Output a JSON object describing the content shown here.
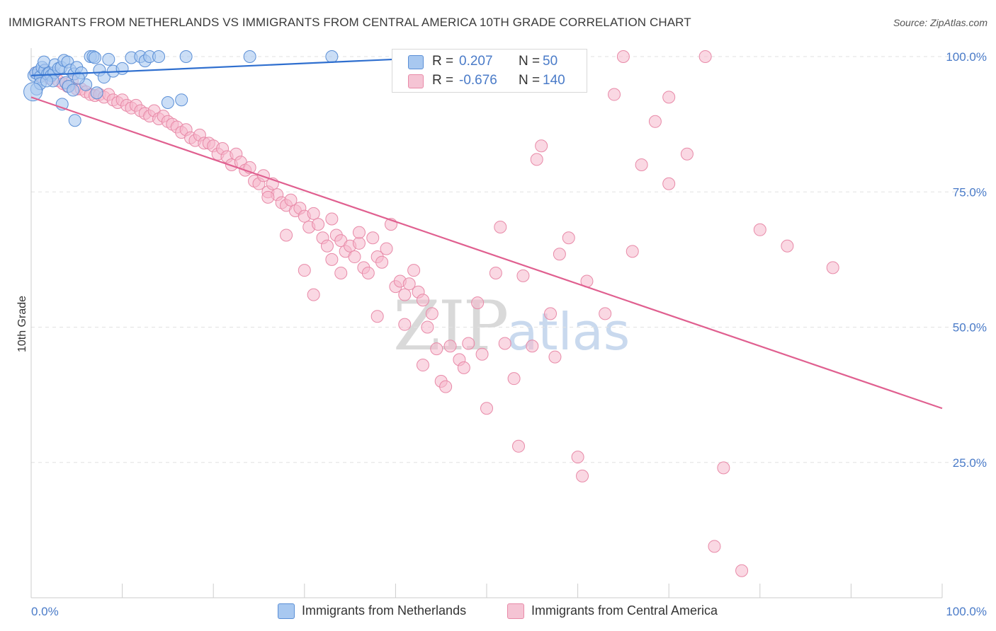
{
  "title": "IMMIGRANTS FROM NETHERLANDS VS IMMIGRANTS FROM CENTRAL AMERICA 10TH GRADE CORRELATION CHART",
  "source": "Source: ZipAtlas.com",
  "watermark": {
    "zip": "ZIP",
    "atlas": "atlas"
  },
  "legend": {
    "r_label": "R =",
    "n_label": "N =",
    "series1": {
      "r": "0.207",
      "n": "50"
    },
    "series2": {
      "r": "-0.676",
      "n": "140"
    }
  },
  "bottom_legend": {
    "series1": "Immigrants from Netherlands",
    "series2": "Immigrants from Central America"
  },
  "colors": {
    "series1_fill": "#a8c8f0",
    "series1_stroke": "#5b8fd6",
    "series1_line": "#2f6fcf",
    "series2_fill": "#f5b8cc",
    "series2_stroke": "#e88aa8",
    "series2_line": "#e06090",
    "tick": "#4a7bc8",
    "grid": "#e2e2e2"
  },
  "chart_data": {
    "type": "scatter",
    "title": "IMMIGRANTS FROM NETHERLANDS VS IMMIGRANTS FROM CENTRAL AMERICA 10TH GRADE CORRELATION CHART",
    "xlabel": "",
    "ylabel": "10th Grade",
    "xlim": [
      0,
      100
    ],
    "ylim": [
      0,
      100
    ],
    "x_ticks": [
      "0.0%",
      "100.0%"
    ],
    "y_ticks": [
      {
        "value": 25,
        "label": "25.0%"
      },
      {
        "value": 50,
        "label": "50.0%"
      },
      {
        "value": 75,
        "label": "75.0%"
      },
      {
        "value": 100,
        "label": "100.0%"
      }
    ],
    "grid": true,
    "series": [
      {
        "name": "Immigrants from Netherlands",
        "R": 0.207,
        "N": 50,
        "trend": {
          "x": [
            0,
            40
          ],
          "y": [
            96.5,
            99.5
          ]
        },
        "points": [
          [
            0.3,
            96.5
          ],
          [
            0.5,
            97
          ],
          [
            0.8,
            97.2
          ],
          [
            1,
            96.3
          ],
          [
            1.2,
            98
          ],
          [
            1.5,
            97.5
          ],
          [
            1.8,
            96.8
          ],
          [
            2,
            97
          ],
          [
            2.2,
            96.5
          ],
          [
            2.5,
            97
          ],
          [
            1.4,
            99
          ],
          [
            2.6,
            98.5
          ],
          [
            3,
            97.8
          ],
          [
            3.3,
            98
          ],
          [
            3.6,
            99.3
          ],
          [
            4,
            99
          ],
          [
            4.3,
            97.5
          ],
          [
            4.7,
            96.8
          ],
          [
            5,
            98
          ],
          [
            5.5,
            97
          ],
          [
            6.5,
            100
          ],
          [
            6.8,
            100
          ],
          [
            7,
            99.8
          ],
          [
            7.5,
            97.5
          ],
          [
            8,
            96.2
          ],
          [
            8.5,
            99.5
          ],
          [
            9,
            97.3
          ],
          [
            10,
            97.8
          ],
          [
            11,
            99.8
          ],
          [
            12,
            100
          ],
          [
            12.5,
            99.2
          ],
          [
            13,
            100
          ],
          [
            14,
            100
          ],
          [
            17,
            100
          ],
          [
            24,
            100
          ],
          [
            33,
            100
          ],
          [
            2.4,
            95.5
          ],
          [
            3.8,
            95.2
          ],
          [
            4.1,
            94.5
          ],
          [
            6,
            94.8
          ],
          [
            3.4,
            91.2
          ],
          [
            4.6,
            93.8
          ],
          [
            7.2,
            93.3
          ],
          [
            15,
            91.5
          ],
          [
            16.5,
            92
          ],
          [
            4.8,
            88.2
          ],
          [
            0.6,
            94
          ],
          [
            1,
            95
          ],
          [
            1.7,
            95.5
          ],
          [
            5.2,
            96
          ]
        ]
      },
      {
        "name": "Immigrants from Central America",
        "R": -0.676,
        "N": 140,
        "trend": {
          "x": [
            0,
            100
          ],
          "y": [
            92.5,
            35
          ]
        },
        "points": [
          [
            0.5,
            97
          ],
          [
            1,
            96.5
          ],
          [
            1.5,
            97.5
          ],
          [
            2,
            96
          ],
          [
            2.5,
            97
          ],
          [
            3,
            95.5
          ],
          [
            3.5,
            95
          ],
          [
            4,
            94.5
          ],
          [
            4.5,
            95.5
          ],
          [
            5,
            94
          ],
          [
            5.5,
            94
          ],
          [
            6,
            93.5
          ],
          [
            6.5,
            93
          ],
          [
            7,
            92.8
          ],
          [
            7.5,
            93
          ],
          [
            8,
            92.5
          ],
          [
            8.5,
            93
          ],
          [
            9,
            92
          ],
          [
            9.5,
            91.5
          ],
          [
            10,
            92
          ],
          [
            10.5,
            91
          ],
          [
            11,
            90.5
          ],
          [
            11.5,
            91
          ],
          [
            12,
            90
          ],
          [
            12.5,
            89.5
          ],
          [
            13,
            89
          ],
          [
            13.5,
            90
          ],
          [
            14,
            88.5
          ],
          [
            14.5,
            89
          ],
          [
            15,
            88
          ],
          [
            15.5,
            87.5
          ],
          [
            16,
            87
          ],
          [
            16.5,
            86
          ],
          [
            17,
            86.5
          ],
          [
            17.5,
            85
          ],
          [
            18,
            84.5
          ],
          [
            18.5,
            85.5
          ],
          [
            19,
            84
          ],
          [
            19.5,
            84
          ],
          [
            20,
            83.5
          ],
          [
            20.5,
            82
          ],
          [
            21,
            83
          ],
          [
            21.5,
            81.5
          ],
          [
            22,
            80
          ],
          [
            22.5,
            82
          ],
          [
            23,
            80.5
          ],
          [
            23.5,
            79
          ],
          [
            24,
            79.5
          ],
          [
            24.5,
            77
          ],
          [
            25,
            76.5
          ],
          [
            25.5,
            78
          ],
          [
            26,
            75
          ],
          [
            26.5,
            76.5
          ],
          [
            27,
            74.5
          ],
          [
            27.5,
            73
          ],
          [
            28,
            72.5
          ],
          [
            28.5,
            73.5
          ],
          [
            29,
            71.5
          ],
          [
            29.5,
            72
          ],
          [
            30,
            70.5
          ],
          [
            30.5,
            68.5
          ],
          [
            31,
            71
          ],
          [
            31.5,
            69
          ],
          [
            32,
            66.5
          ],
          [
            32.5,
            65
          ],
          [
            33,
            62.5
          ],
          [
            33.5,
            67
          ],
          [
            34,
            66
          ],
          [
            34.5,
            64
          ],
          [
            35,
            65
          ],
          [
            35.5,
            63
          ],
          [
            36,
            65.5
          ],
          [
            36.5,
            61
          ],
          [
            37,
            60
          ],
          [
            37.5,
            66.5
          ],
          [
            38,
            63
          ],
          [
            38.5,
            62
          ],
          [
            39,
            64.5
          ],
          [
            39.5,
            69
          ],
          [
            40,
            57.5
          ],
          [
            40.5,
            58.5
          ],
          [
            41,
            56
          ],
          [
            41.5,
            58
          ],
          [
            42,
            60.5
          ],
          [
            42.5,
            56.5
          ],
          [
            43,
            55
          ],
          [
            43.5,
            50
          ],
          [
            44,
            52.5
          ],
          [
            44.5,
            46
          ],
          [
            45,
            40
          ],
          [
            45.5,
            39
          ],
          [
            46,
            46.5
          ],
          [
            47,
            44
          ],
          [
            47.5,
            42.5
          ],
          [
            48,
            47
          ],
          [
            49,
            54.5
          ],
          [
            49.5,
            45
          ],
          [
            50,
            35
          ],
          [
            51,
            60
          ],
          [
            51.5,
            68.5
          ],
          [
            52,
            47
          ],
          [
            53,
            40.5
          ],
          [
            53.5,
            28
          ],
          [
            54,
            59.5
          ],
          [
            55,
            46.5
          ],
          [
            55.5,
            81
          ],
          [
            56,
            83.5
          ],
          [
            57,
            52.5
          ],
          [
            57.5,
            44.5
          ],
          [
            58,
            63.5
          ],
          [
            59,
            66.5
          ],
          [
            60,
            26
          ],
          [
            60.5,
            22.5
          ],
          [
            61,
            58.5
          ],
          [
            63,
            52.5
          ],
          [
            64,
            93
          ],
          [
            65,
            100
          ],
          [
            66,
            64
          ],
          [
            67,
            80
          ],
          [
            70,
            76.5
          ],
          [
            74,
            100
          ],
          [
            75,
            9.5
          ],
          [
            76,
            24
          ],
          [
            78,
            5
          ],
          [
            80,
            68
          ],
          [
            83,
            65
          ],
          [
            88,
            61
          ],
          [
            72,
            82
          ],
          [
            68.5,
            88
          ],
          [
            70,
            92.5
          ],
          [
            36,
            67.5
          ],
          [
            33,
            70
          ],
          [
            26,
            74
          ],
          [
            28,
            67
          ],
          [
            30,
            60.5
          ],
          [
            31,
            56
          ],
          [
            34,
            60
          ],
          [
            38,
            52
          ],
          [
            41,
            50.5
          ],
          [
            43,
            43
          ]
        ]
      }
    ]
  }
}
